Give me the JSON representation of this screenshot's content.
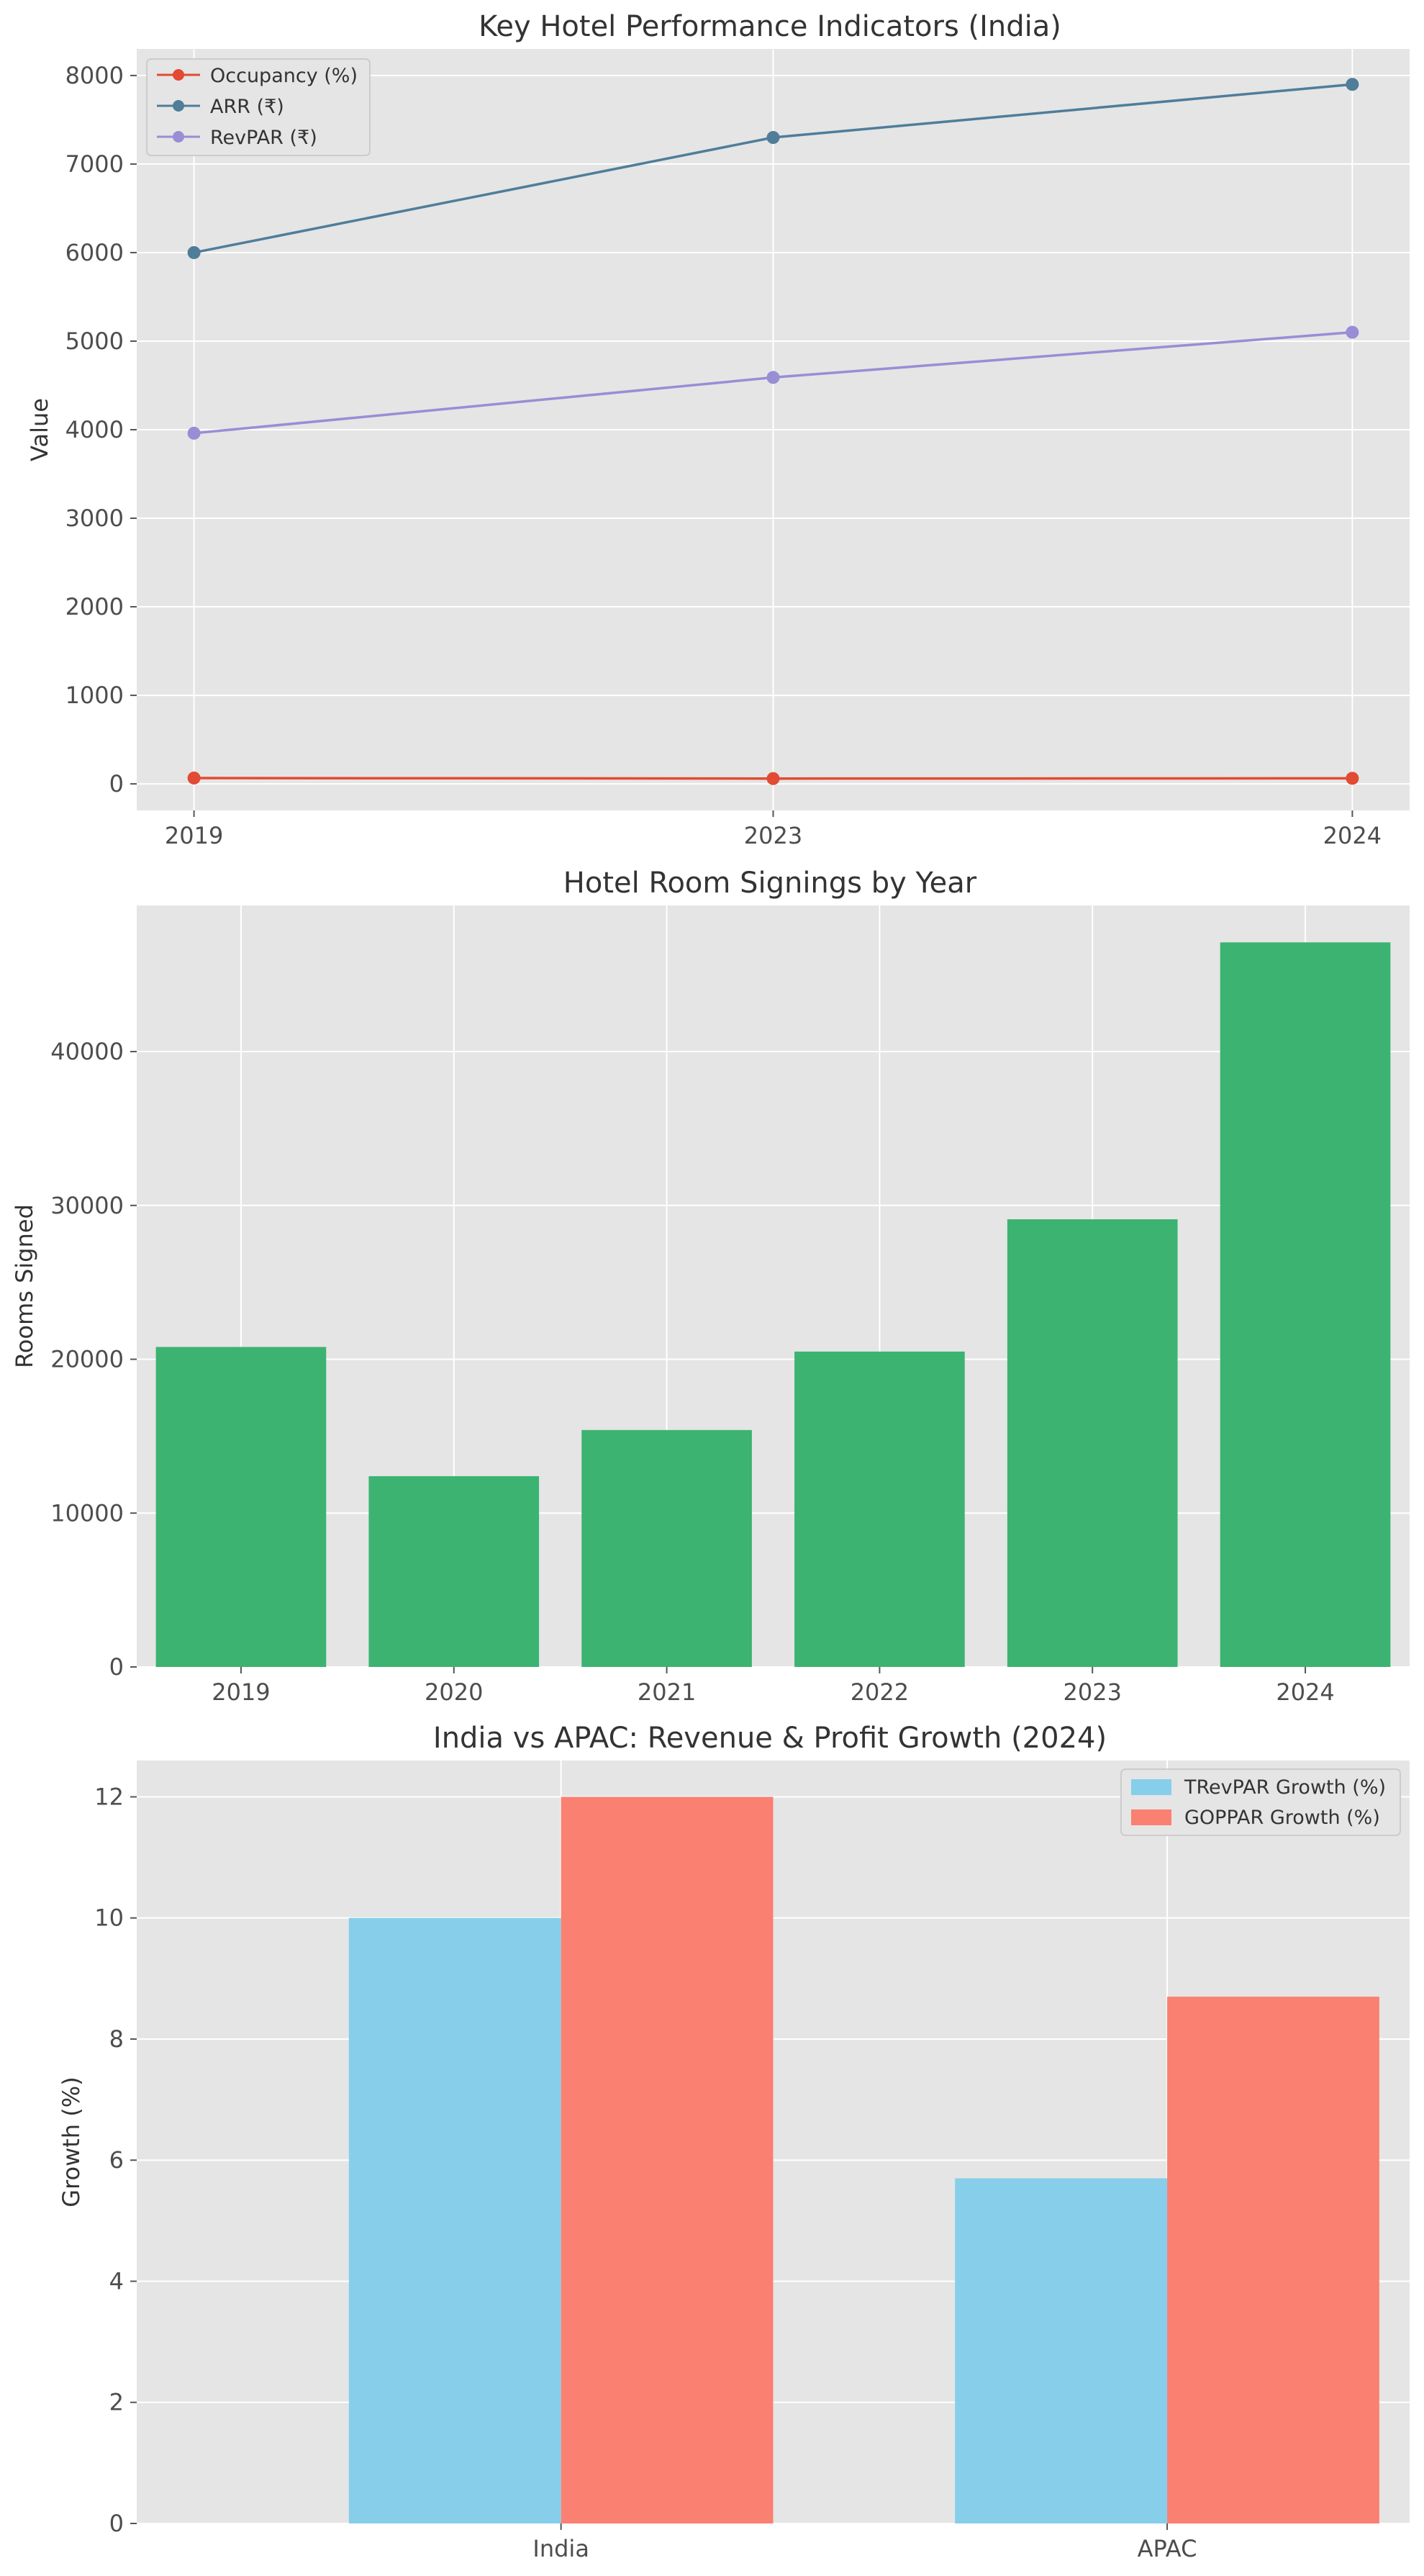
{
  "chart_data": [
    {
      "type": "line",
      "title": "Key Hotel Performance Indicators (India)",
      "xlabel": "",
      "ylabel": "Value",
      "categories": [
        "2019",
        "2023",
        "2024"
      ],
      "ylim": [
        -300,
        8300
      ],
      "yticks": [
        0,
        1000,
        2000,
        3000,
        4000,
        5000,
        6000,
        7000,
        8000
      ],
      "legend_position": "top-left",
      "series": [
        {
          "name": "Occupancy (%)",
          "color": "#e24a33",
          "values": [
            66,
            60,
            63
          ]
        },
        {
          "name": "ARR (₹)",
          "color": "#4f7d9a",
          "values": [
            6000,
            7300,
            7900
          ]
        },
        {
          "name": "RevPAR (₹)",
          "color": "#988ed5",
          "values": [
            3960,
            4590,
            5100
          ]
        }
      ]
    },
    {
      "type": "bar",
      "title": "Hotel Room Signings by Year",
      "xlabel": "",
      "ylabel": "Rooms Signed",
      "categories": [
        "2019",
        "2020",
        "2021",
        "2022",
        "2023",
        "2024"
      ],
      "values": [
        20800,
        12400,
        15400,
        20500,
        29100,
        47100
      ],
      "ylim": [
        0,
        49500
      ],
      "yticks": [
        0,
        10000,
        20000,
        30000,
        40000
      ],
      "color": "#3cb371"
    },
    {
      "type": "bar",
      "title": "India vs APAC: Revenue & Profit Growth (2024)",
      "xlabel": "",
      "ylabel": "Growth (%)",
      "categories": [
        "India",
        "APAC"
      ],
      "ylim": [
        0,
        12.6
      ],
      "yticks": [
        0,
        2,
        4,
        6,
        8,
        10,
        12
      ],
      "legend_position": "top-right",
      "series": [
        {
          "name": "TRevPAR Growth (%)",
          "color": "#87ceeb",
          "values": [
            10.0,
            5.7
          ]
        },
        {
          "name": "GOPPAR Growth (%)",
          "color": "#fa8072",
          "values": [
            12.0,
            8.7
          ]
        }
      ]
    }
  ]
}
